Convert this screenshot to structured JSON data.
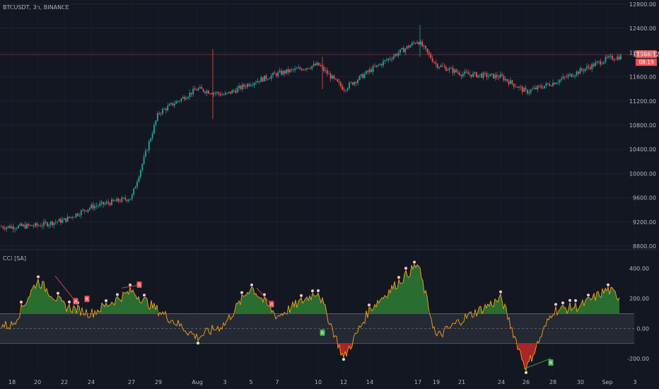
{
  "header": {
    "title": "BTCUSDT, 3h, BINANCE"
  },
  "indicator": {
    "title": "CCI [SA]"
  },
  "colors": {
    "background": "#131722",
    "up": "#26a69a",
    "down": "#ef5350",
    "cci_line": "#f7a21b",
    "green_fill": "#2e7d32",
    "red_fill": "#c62828",
    "band": "#2a2e39"
  },
  "price_panel": {
    "y_ticks": [
      "12800.00",
      "12400.00",
      "12000.00",
      "11600.00",
      "11200.00",
      "10800.00",
      "10400.00",
      "10000.00",
      "9600.00",
      "9200.00",
      "8800.00"
    ],
    "last_price": "11968.12",
    "countdown": "08:19"
  },
  "cci_panel": {
    "y_ticks": [
      "400.00",
      "200.00",
      "0.00",
      "-200.00"
    ]
  },
  "x_axis": {
    "labels": [
      "18",
      "20",
      "22",
      "24",
      "27",
      "29",
      "Aug",
      "3",
      "5",
      "7",
      "10",
      "12",
      "14",
      "17",
      "19",
      "21",
      "24",
      "26",
      "28",
      "30",
      "Sep",
      "3"
    ]
  },
  "divergence_label": "R",
  "chart_data": [
    {
      "type": "candlestick",
      "title": "BTCUSDT, 3h, BINANCE",
      "ylim": [
        8800,
        12800
      ],
      "x": [
        "18",
        "20",
        "22",
        "24",
        "27",
        "29",
        "Aug",
        "3",
        "5",
        "7",
        "10",
        "12",
        "14",
        "17",
        "19",
        "21",
        "24",
        "26",
        "28",
        "30",
        "Sep",
        "3"
      ],
      "close_approx": [
        9120,
        9140,
        9230,
        9450,
        9600,
        11000,
        11400,
        11300,
        11500,
        11650,
        11800,
        11400,
        11700,
        12200,
        11800,
        11650,
        11600,
        11350,
        11500,
        11700,
        11900,
        11968.12
      ],
      "last_price": 11968.12
    },
    {
      "type": "line",
      "title": "CCI [SA]",
      "ylim": [
        -300,
        460
      ],
      "band": [
        -100,
        100
      ],
      "x": [
        "18",
        "20",
        "22",
        "24",
        "27",
        "29",
        "Aug",
        "3",
        "5",
        "7",
        "10",
        "12",
        "14",
        "17",
        "19",
        "21",
        "24",
        "26",
        "28",
        "30",
        "Sep",
        "3"
      ],
      "values": [
        20,
        320,
        150,
        100,
        250,
        120,
        -60,
        30,
        280,
        80,
        250,
        -200,
        130,
        430,
        -60,
        60,
        200,
        -270,
        120,
        150,
        260,
        150
      ]
    }
  ]
}
